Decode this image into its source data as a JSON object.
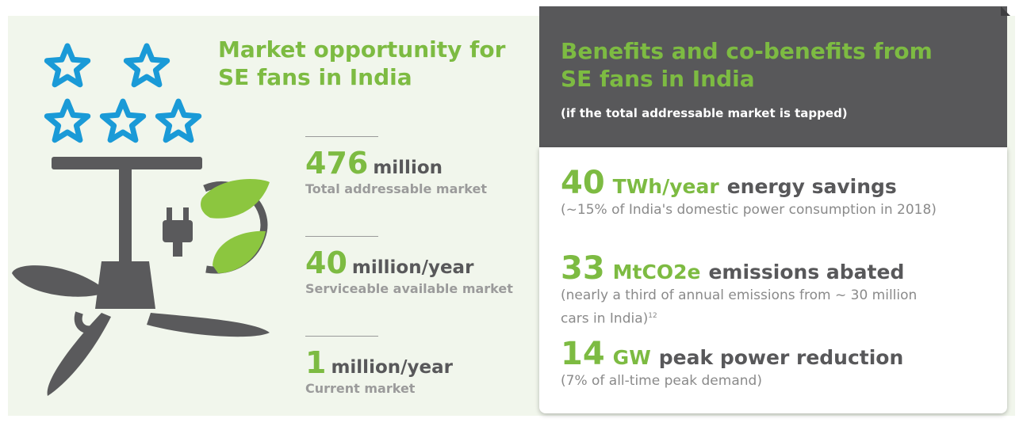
{
  "left": {
    "title_lines": [
      "Market opportunity for",
      "SE fans in India"
    ],
    "stats": [
      {
        "value": "476",
        "unit": "million",
        "label": "Total addressable market"
      },
      {
        "value": "40",
        "unit": "million/year",
        "label": "Serviceable available market"
      },
      {
        "value": "1",
        "unit": "million/year",
        "label": "Current market"
      }
    ]
  },
  "right": {
    "title_lines": [
      "Benefits and co-benefits from",
      "SE fans in India"
    ],
    "subtitle": "(if the total addressable market is tapped)",
    "items": [
      {
        "value": "40",
        "unit": "TWh/year",
        "rest": "energy savings",
        "note_lines": [
          "(~15% of India's domestic power consumption in 2018)"
        ]
      },
      {
        "value": "33",
        "unit": "MtCO2e",
        "rest": "emissions abated",
        "note_lines": [
          "(nearly a third of annual emissions from ~ 30 million",
          "cars in India)"
        ],
        "note_sup": "12"
      },
      {
        "value": "14",
        "unit": "GW",
        "rest": "peak power reduction",
        "note_lines": [
          "(7% of all-time peak demand)"
        ]
      }
    ]
  }
}
